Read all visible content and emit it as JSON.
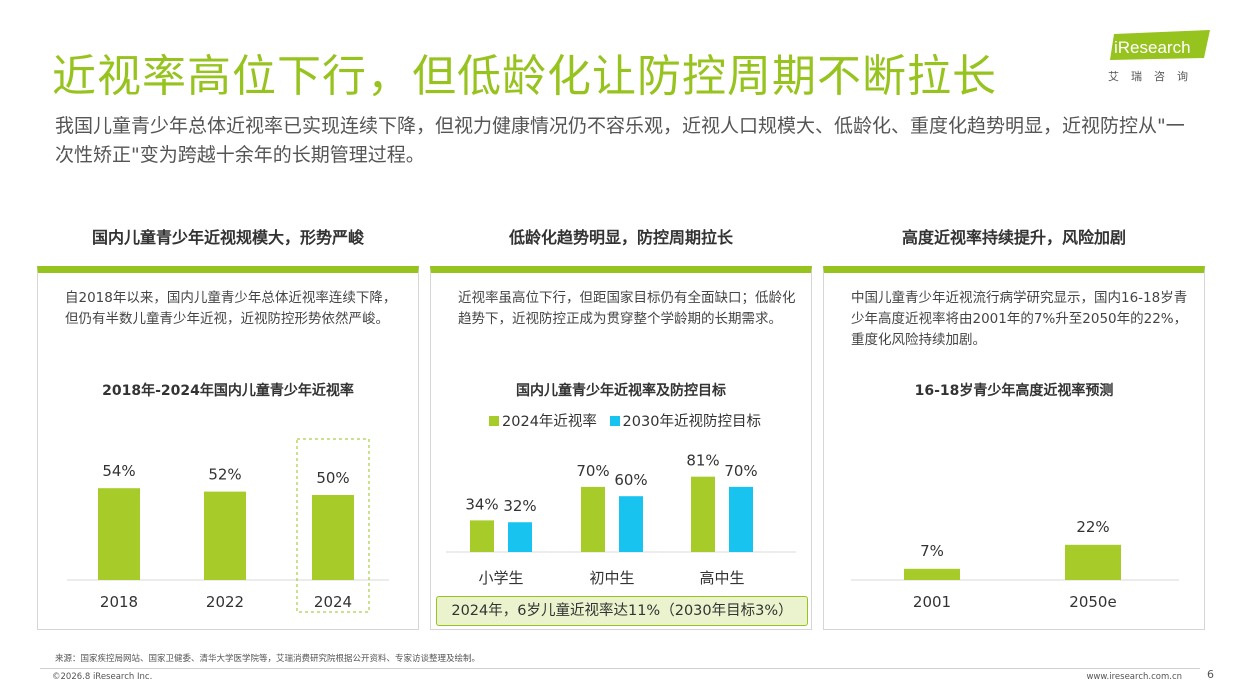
{
  "header": {
    "title": "近视率高位下行，但低龄化让防控周期不断拉长",
    "subtitle": "我国儿童青少年总体近视率已实现连续下降，但视力健康情况仍不容乐观，近视人口规模大、低龄化、重度化趋势明显，近视防控从\"一次性矫正\"变为跨越十余年的长期管理过程。"
  },
  "logo": {
    "brand": "iResearch",
    "cn": "艾瑞咨询"
  },
  "colors": {
    "green": "#97c31f",
    "bar_green": "#a7cc2a",
    "blue": "#19c3ef",
    "highlight_border": "#97c31f"
  },
  "panels": [
    {
      "heading": "国内儿童青少年近视规模大，形势严峻",
      "description": "自2018年以来，国内儿童青少年总体近视率连续下降，但仍有半数儿童青少年近视，近视防控形势依然严峻。",
      "chart_title": "2018年-2024年国内儿童青少年近视率"
    },
    {
      "heading": "低龄化趋势明显，防控周期拉长",
      "description": "近视率虽高位下行，但距国家目标仍有全面缺口；低龄化趋势下，近视防控正成为贯穿整个学龄期的长期需求。",
      "chart_title": "国内儿童青少年近视率及防控目标",
      "callout": "2024年，6岁儿童近视率达11%（2030年目标3%）"
    },
    {
      "heading": "高度近视率持续提升，风险加剧",
      "description": "中国儿童青少年近视流行病学研究显示，国内16-18岁青少年高度近视率将由2001年的7%升至2050年的22%，重度化风险持续加剧。",
      "chart_title": "16-18岁青少年高度近视率预测"
    }
  ],
  "chart_data": [
    {
      "type": "bar",
      "categories": [
        "2018",
        "2022",
        "2024"
      ],
      "values": [
        54,
        52,
        50
      ],
      "value_labels": [
        "54%",
        "52%",
        "50%"
      ],
      "highlight": "2024",
      "unit": "%"
    },
    {
      "type": "bar",
      "categories": [
        "小学生",
        "初中生",
        "高中生"
      ],
      "series": [
        {
          "name": "2024年近视率",
          "values": [
            34,
            70,
            81
          ],
          "labels": [
            "34%",
            "70%",
            "81%"
          ],
          "color": "#a7cc2a"
        },
        {
          "name": "2030年近视防控目标",
          "values": [
            32,
            60,
            70
          ],
          "labels": [
            "32%",
            "60%",
            "70%"
          ],
          "color": "#19c3ef"
        }
      ],
      "unit": "%"
    },
    {
      "type": "bar",
      "categories": [
        "2001",
        "2050e"
      ],
      "values": [
        7,
        22
      ],
      "value_labels": [
        "7%",
        "22%"
      ],
      "unit": "%"
    }
  ],
  "footer": {
    "source": "来源：国家疾控局网站、国家卫健委、清华大学医学院等，艾瑞消费研究院根据公开资料、专家访谈整理及绘制。",
    "copyright": "©2026.8 iResearch Inc.",
    "website": "www.iresearch.com.cn",
    "page": "6"
  }
}
